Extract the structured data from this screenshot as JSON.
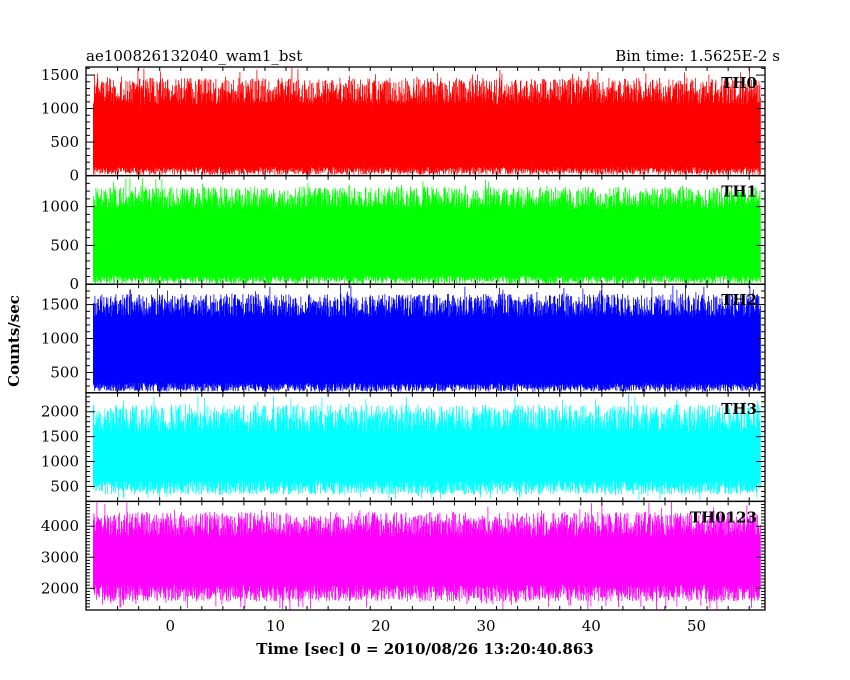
{
  "header": {
    "title": "ae100826132040_wam1_bst",
    "bin_time": "Bin time: 1.5625E-2 s"
  },
  "chart_data": {
    "type": "line",
    "xlabel": "Time [sec] 0 = 2010/08/26 13:20:40.863",
    "ylabel": "Counts/sec",
    "xlim": [
      -8.0,
      56.5
    ],
    "x_ticks": [
      0,
      10,
      20,
      30,
      40,
      50
    ],
    "x_tick_labels": [
      "0",
      "10",
      "20",
      "30",
      "40",
      "50"
    ],
    "data_x_range": [
      -7.3,
      56.1
    ],
    "panels": [
      {
        "name": "TH0",
        "color": "#ff0000",
        "ylim": [
          0,
          1620
        ],
        "yticks": [
          0,
          500,
          1000,
          1500
        ],
        "ytick_labels": [
          "0",
          "500",
          "1000",
          "1500"
        ],
        "typical_min": 70,
        "typical_max": 1180,
        "extreme_min": 0,
        "extreme_max": 1620
      },
      {
        "name": "TH1",
        "color": "#00ff00",
        "ylim": [
          0,
          1400
        ],
        "yticks": [
          0,
          500,
          1000
        ],
        "ytick_labels": [
          "0",
          "500",
          "1000"
        ],
        "typical_min": 60,
        "typical_max": 1050,
        "extreme_min": 0,
        "extreme_max": 1380
      },
      {
        "name": "TH2",
        "color": "#0000ff",
        "ylim": [
          200,
          1800
        ],
        "yticks": [
          500,
          1000,
          1500
        ],
        "ytick_labels": [
          "500",
          "1000",
          "1500"
        ],
        "typical_min": 280,
        "typical_max": 1420,
        "extreme_min": 200,
        "extreme_max": 1800
      },
      {
        "name": "TH3",
        "color": "#00ffff",
        "ylim": [
          200,
          2380
        ],
        "yticks": [
          500,
          1000,
          1500,
          2000
        ],
        "ytick_labels": [
          "500",
          "1000",
          "1500",
          "2000"
        ],
        "typical_min": 480,
        "typical_max": 1750,
        "extreme_min": 220,
        "extreme_max": 2380
      },
      {
        "name": "TH0123",
        "color": "#ff00ff",
        "ylim": [
          1300,
          4800
        ],
        "yticks": [
          2000,
          3000,
          4000
        ],
        "ytick_labels": [
          "2000",
          "3000",
          "4000"
        ],
        "typical_min": 1850,
        "typical_max": 3900,
        "extreme_min": 1300,
        "extreme_max": 4800
      }
    ]
  }
}
